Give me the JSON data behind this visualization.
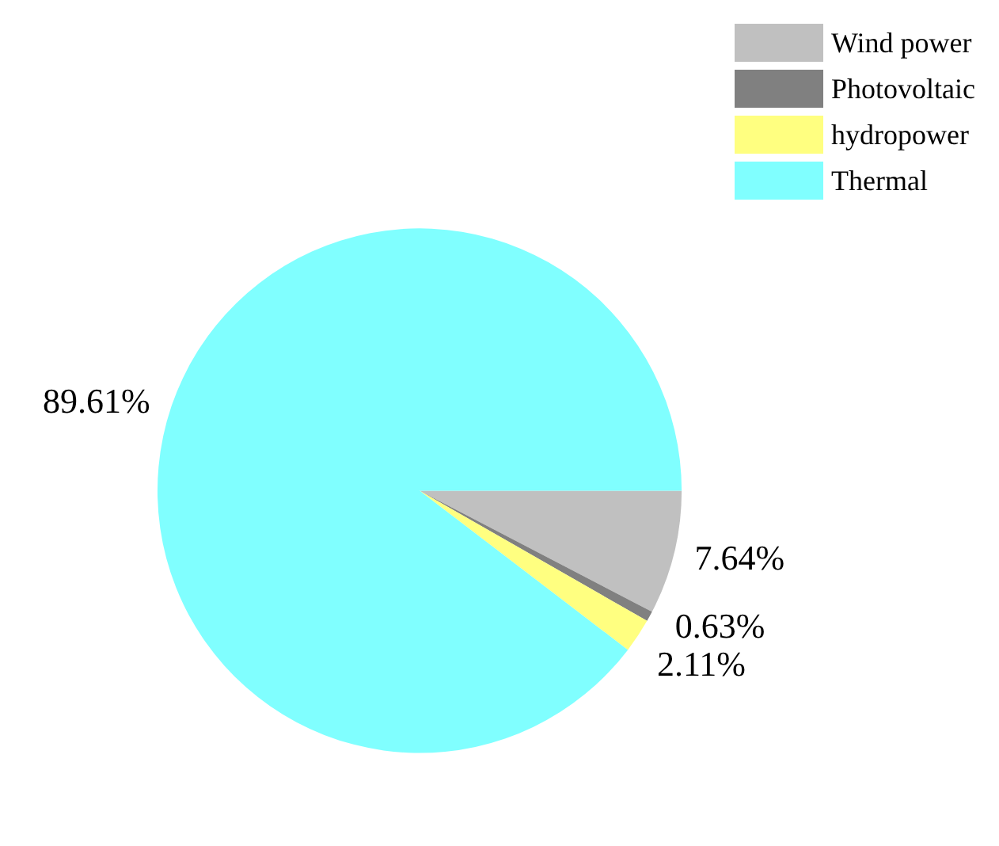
{
  "chart_data": {
    "type": "pie",
    "categories": [
      "Wind power",
      "Photovoltaic",
      "hydropower",
      "Thermal"
    ],
    "values": [
      7.64,
      0.63,
      2.11,
      89.61
    ],
    "colors": [
      "#c0c0c0",
      "#808080",
      "#ffff80",
      "#80ffff"
    ],
    "value_labels": [
      "7.64%",
      "0.63%",
      "2.11%",
      "89.61%"
    ],
    "legend": "top right"
  }
}
